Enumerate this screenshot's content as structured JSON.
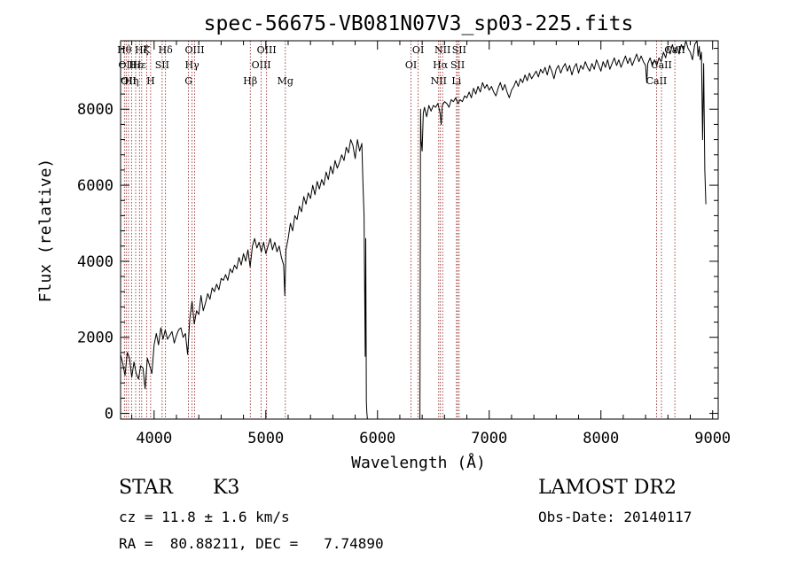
{
  "chart_data": {
    "type": "line",
    "title": "spec-56675-VB081N07V3_sp03-225.fits",
    "xlabel": "Wavelength (Å)",
    "ylabel": "Flux (relative)",
    "xlim": [
      3700,
      9050
    ],
    "ylim": [
      -150,
      9800
    ],
    "xticks": [
      4000,
      5000,
      6000,
      7000,
      8000,
      9000
    ],
    "yticks": [
      0,
      2000,
      4000,
      6000,
      8000
    ],
    "grid": false,
    "line_color": "#000000",
    "marker_color": "#8b1a1a",
    "series": [
      {
        "points": [
          [
            3700,
            1550
          ],
          [
            3720,
            1300
          ],
          [
            3740,
            1000
          ],
          [
            3760,
            1600
          ],
          [
            3780,
            1450
          ],
          [
            3800,
            950
          ],
          [
            3820,
            1350
          ],
          [
            3840,
            1050
          ],
          [
            3860,
            900
          ],
          [
            3880,
            1250
          ],
          [
            3900,
            1200
          ],
          [
            3920,
            650
          ],
          [
            3940,
            1450
          ],
          [
            3960,
            1250
          ],
          [
            3980,
            1050
          ],
          [
            4000,
            1800
          ],
          [
            4020,
            2100
          ],
          [
            4040,
            1800
          ],
          [
            4060,
            2250
          ],
          [
            4080,
            1950
          ],
          [
            4100,
            2200
          ],
          [
            4120,
            1950
          ],
          [
            4140,
            2050
          ],
          [
            4160,
            2150
          ],
          [
            4180,
            1850
          ],
          [
            4200,
            2050
          ],
          [
            4220,
            2200
          ],
          [
            4240,
            2250
          ],
          [
            4260,
            2000
          ],
          [
            4280,
            2100
          ],
          [
            4300,
            1550
          ],
          [
            4320,
            2500
          ],
          [
            4340,
            2950
          ],
          [
            4360,
            2350
          ],
          [
            4380,
            2700
          ],
          [
            4400,
            2600
          ],
          [
            4420,
            3100
          ],
          [
            4440,
            2700
          ],
          [
            4460,
            2900
          ],
          [
            4480,
            3150
          ],
          [
            4500,
            3000
          ],
          [
            4520,
            3300
          ],
          [
            4540,
            3200
          ],
          [
            4560,
            3400
          ],
          [
            4580,
            3250
          ],
          [
            4600,
            3550
          ],
          [
            4620,
            3500
          ],
          [
            4640,
            3650
          ],
          [
            4660,
            3500
          ],
          [
            4680,
            3800
          ],
          [
            4700,
            3700
          ],
          [
            4720,
            3900
          ],
          [
            4740,
            3800
          ],
          [
            4760,
            4100
          ],
          [
            4780,
            3900
          ],
          [
            4800,
            4200
          ],
          [
            4820,
            4000
          ],
          [
            4840,
            4300
          ],
          [
            4860,
            3850
          ],
          [
            4880,
            4400
          ],
          [
            4900,
            4600
          ],
          [
            4920,
            4350
          ],
          [
            4940,
            4500
          ],
          [
            4960,
            4250
          ],
          [
            4980,
            4500
          ],
          [
            5000,
            4200
          ],
          [
            5020,
            4400
          ],
          [
            5040,
            4600
          ],
          [
            5060,
            4300
          ],
          [
            5080,
            4500
          ],
          [
            5100,
            4250
          ],
          [
            5120,
            4400
          ],
          [
            5140,
            4100
          ],
          [
            5160,
            3900
          ],
          [
            5170,
            3100
          ],
          [
            5180,
            4300
          ],
          [
            5200,
            4600
          ],
          [
            5220,
            5000
          ],
          [
            5240,
            4800
          ],
          [
            5260,
            5200
          ],
          [
            5280,
            5100
          ],
          [
            5300,
            5450
          ],
          [
            5320,
            5300
          ],
          [
            5340,
            5700
          ],
          [
            5360,
            5500
          ],
          [
            5380,
            5800
          ],
          [
            5400,
            5650
          ],
          [
            5420,
            6000
          ],
          [
            5440,
            5750
          ],
          [
            5460,
            6100
          ],
          [
            5480,
            5900
          ],
          [
            5500,
            6150
          ],
          [
            5520,
            6000
          ],
          [
            5540,
            6350
          ],
          [
            5560,
            6150
          ],
          [
            5580,
            6500
          ],
          [
            5600,
            6300
          ],
          [
            5620,
            6650
          ],
          [
            5640,
            6450
          ],
          [
            5660,
            6600
          ],
          [
            5680,
            6800
          ],
          [
            5700,
            6650
          ],
          [
            5720,
            7000
          ],
          [
            5740,
            6850
          ],
          [
            5760,
            7200
          ],
          [
            5780,
            7050
          ],
          [
            5800,
            6700
          ],
          [
            5820,
            7200
          ],
          [
            5840,
            6900
          ],
          [
            5860,
            7100
          ],
          [
            5870,
            6000
          ],
          [
            5880,
            5200
          ],
          [
            5890,
            1500
          ],
          [
            5895,
            4600
          ],
          [
            5900,
            300
          ],
          [
            5905,
            0
          ],
          [
            5910,
            -150
          ]
        ]
      },
      {
        "points": [
          [
            6380,
            -150
          ],
          [
            6385,
            8000
          ],
          [
            6390,
            7200
          ],
          [
            6400,
            6900
          ],
          [
            6410,
            7900
          ],
          [
            6420,
            8050
          ],
          [
            6440,
            7800
          ],
          [
            6460,
            8100
          ],
          [
            6480,
            7950
          ],
          [
            6500,
            8100
          ],
          [
            6520,
            8050
          ],
          [
            6540,
            8150
          ],
          [
            6560,
            7900
          ],
          [
            6570,
            7600
          ],
          [
            6580,
            8100
          ],
          [
            6600,
            8200
          ],
          [
            6620,
            8150
          ],
          [
            6640,
            8050
          ],
          [
            6660,
            8250
          ],
          [
            6680,
            8200
          ],
          [
            6700,
            8300
          ],
          [
            6720,
            8150
          ],
          [
            6740,
            8250
          ],
          [
            6760,
            8200
          ],
          [
            6780,
            8350
          ],
          [
            6800,
            8300
          ],
          [
            6820,
            8450
          ],
          [
            6840,
            8300
          ],
          [
            6860,
            8550
          ],
          [
            6880,
            8400
          ],
          [
            6900,
            8600
          ],
          [
            6920,
            8450
          ],
          [
            6940,
            8700
          ],
          [
            6960,
            8550
          ],
          [
            6980,
            8650
          ],
          [
            7000,
            8500
          ],
          [
            7020,
            8600
          ],
          [
            7040,
            8450
          ],
          [
            7060,
            8350
          ],
          [
            7080,
            8550
          ],
          [
            7100,
            8700
          ],
          [
            7120,
            8500
          ],
          [
            7140,
            8650
          ],
          [
            7160,
            8450
          ],
          [
            7180,
            8300
          ],
          [
            7200,
            8500
          ],
          [
            7220,
            8600
          ],
          [
            7240,
            8750
          ],
          [
            7260,
            8600
          ],
          [
            7280,
            8800
          ],
          [
            7300,
            8700
          ],
          [
            7320,
            8900
          ],
          [
            7340,
            8750
          ],
          [
            7360,
            8950
          ],
          [
            7380,
            8800
          ],
          [
            7400,
            8900
          ],
          [
            7420,
            9000
          ],
          [
            7440,
            8850
          ],
          [
            7460,
            9050
          ],
          [
            7480,
            8950
          ],
          [
            7500,
            9100
          ],
          [
            7520,
            8900
          ],
          [
            7540,
            9150
          ],
          [
            7560,
            9000
          ],
          [
            7580,
            8800
          ],
          [
            7600,
            9050
          ],
          [
            7620,
            9150
          ],
          [
            7640,
            8950
          ],
          [
            7660,
            9100
          ],
          [
            7680,
            9200
          ],
          [
            7700,
            9000
          ],
          [
            7720,
            9150
          ],
          [
            7740,
            8900
          ],
          [
            7760,
            9100
          ],
          [
            7780,
            9200
          ],
          [
            7800,
            8950
          ],
          [
            7820,
            9150
          ],
          [
            7840,
            9050
          ],
          [
            7860,
            9250
          ],
          [
            7880,
            9100
          ],
          [
            7900,
            9000
          ],
          [
            7920,
            9200
          ],
          [
            7940,
            9050
          ],
          [
            7960,
            9300
          ],
          [
            7980,
            9150
          ],
          [
            8000,
            9000
          ],
          [
            8020,
            9250
          ],
          [
            8040,
            9100
          ],
          [
            8060,
            9300
          ],
          [
            8080,
            9050
          ],
          [
            8100,
            9200
          ],
          [
            8120,
            9350
          ],
          [
            8140,
            9150
          ],
          [
            8160,
            9300
          ],
          [
            8180,
            9100
          ],
          [
            8200,
            9250
          ],
          [
            8220,
            9400
          ],
          [
            8240,
            9200
          ],
          [
            8260,
            9350
          ],
          [
            8280,
            9150
          ],
          [
            8300,
            9300
          ],
          [
            8320,
            9450
          ],
          [
            8340,
            9250
          ],
          [
            8360,
            9400
          ],
          [
            8380,
            9250
          ],
          [
            8400,
            9150
          ],
          [
            8410,
            8700
          ],
          [
            8420,
            9200
          ],
          [
            8440,
            9350
          ],
          [
            8460,
            9150
          ],
          [
            8480,
            9300
          ],
          [
            8500,
            9150
          ],
          [
            8520,
            9350
          ],
          [
            8540,
            9250
          ],
          [
            8560,
            9500
          ],
          [
            8580,
            9350
          ],
          [
            8600,
            9650
          ],
          [
            8620,
            9450
          ],
          [
            8640,
            9700
          ],
          [
            8660,
            9500
          ],
          [
            8680,
            9650
          ],
          [
            8700,
            9450
          ],
          [
            8720,
            9700
          ],
          [
            8740,
            9550
          ],
          [
            8760,
            9800
          ],
          [
            8780,
            9600
          ],
          [
            8800,
            9500
          ],
          [
            8820,
            9300
          ],
          [
            8840,
            9700
          ],
          [
            8860,
            9800
          ],
          [
            8870,
            9400
          ],
          [
            8880,
            9650
          ],
          [
            8890,
            9300
          ],
          [
            8900,
            9500
          ],
          [
            8910,
            7200
          ],
          [
            8920,
            9200
          ],
          [
            8930,
            6400
          ],
          [
            8940,
            5500
          ]
        ]
      }
    ],
    "line_markers": [
      {
        "wl": 3734,
        "label": "Hθ",
        "row": 0
      },
      {
        "wl": 3750,
        "label": "OII",
        "row": 1
      },
      {
        "wl": 3771,
        "label": "OII",
        "row": 2
      },
      {
        "wl": 3798,
        "label": "Hη",
        "row": 2
      },
      {
        "wl": 3835,
        "label": "Hε",
        "row": 1
      },
      {
        "wl": 3869,
        "label": "Hε",
        "row": 1
      },
      {
        "wl": 3889,
        "label": "Hζ",
        "row": 0
      },
      {
        "wl": 3934,
        "label": "K",
        "row": 0
      },
      {
        "wl": 3969,
        "label": "H",
        "row": 2
      },
      {
        "wl": 4072,
        "label": "SII",
        "row": 1
      },
      {
        "wl": 4102,
        "label": "Hδ",
        "row": 0
      },
      {
        "wl": 4308,
        "label": "G",
        "row": 2
      },
      {
        "wl": 4340,
        "label": "Hγ",
        "row": 1
      },
      {
        "wl": 4363,
        "label": "OIII",
        "row": 0
      },
      {
        "wl": 4861,
        "label": "Hβ",
        "row": 2
      },
      {
        "wl": 4959,
        "label": "OIII",
        "row": 1
      },
      {
        "wl": 5007,
        "label": "OIII",
        "row": 0
      },
      {
        "wl": 5175,
        "label": "Mg",
        "row": 2
      },
      {
        "wl": 6300,
        "label": "OI",
        "row": 1
      },
      {
        "wl": 6364,
        "label": "OI",
        "row": 0
      },
      {
        "wl": 6548,
        "label": "NII",
        "row": 2
      },
      {
        "wl": 6563,
        "label": "Hα",
        "row": 1
      },
      {
        "wl": 6583,
        "label": "NII",
        "row": 0
      },
      {
        "wl": 6707,
        "label": "Li",
        "row": 2
      },
      {
        "wl": 6717,
        "label": "SII",
        "row": 1
      },
      {
        "wl": 6731,
        "label": "SII",
        "row": 0
      },
      {
        "wl": 8498,
        "label": "CaII",
        "row": 2
      },
      {
        "wl": 8542,
        "label": "CaII",
        "row": 1
      },
      {
        "wl": 8662,
        "label": "CaII",
        "row": 0
      }
    ]
  },
  "info": {
    "object_class": "STAR",
    "subclass": "K3",
    "cz": "cz = 11.8 ± 1.6 km/s",
    "coords": "RA =  80.88211, DEC =   7.74890",
    "survey": "LAMOST DR2",
    "obs_date": "Obs-Date: 20140117"
  }
}
